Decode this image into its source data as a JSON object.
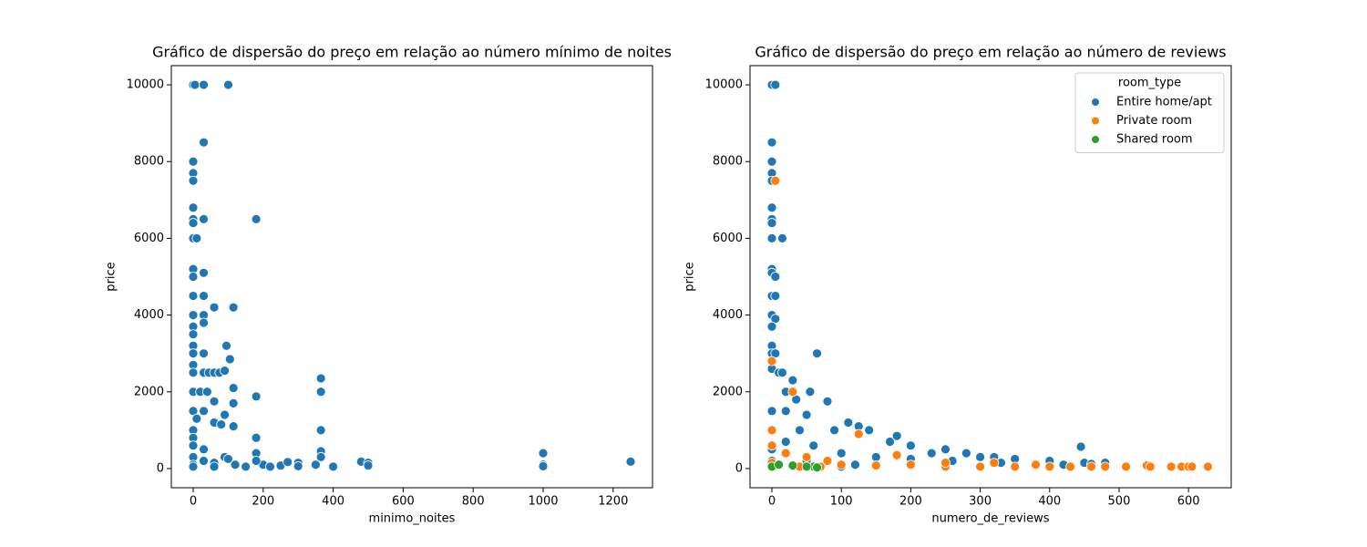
{
  "chart_data": [
    {
      "type": "scatter",
      "title": "Gráfico de dispersão do preço em relação ao número mínimo de noites",
      "xlabel": "minimo_noites",
      "ylabel": "price",
      "xlim": [
        -62.5,
        1312.5
      ],
      "ylim": [
        -500,
        10500
      ],
      "xticks": [
        0,
        200,
        400,
        600,
        800,
        1000,
        1200
      ],
      "yticks": [
        0,
        2000,
        4000,
        6000,
        8000,
        10000
      ],
      "color": "#1f77b4",
      "x": [
        0,
        5,
        30,
        100,
        30,
        0,
        0,
        0,
        0,
        0,
        0,
        30,
        0,
        10,
        180,
        0,
        0,
        30,
        0,
        30,
        60,
        115,
        0,
        30,
        30,
        0,
        0,
        0,
        95,
        0,
        30,
        105,
        0,
        0,
        30,
        45,
        60,
        75,
        90,
        365,
        115,
        0,
        20,
        40,
        365,
        180,
        60,
        115,
        0,
        30,
        90,
        10,
        60,
        80,
        115,
        365,
        0,
        0,
        180,
        0,
        30,
        365,
        180,
        1000,
        480,
        500,
        500,
        400,
        1000,
        1000,
        1250,
        0,
        0,
        30,
        60,
        90,
        120,
        150,
        200,
        250,
        270,
        300,
        300,
        350,
        365,
        0,
        60,
        100,
        180,
        220
      ],
      "values": [
        10000,
        10000,
        10000,
        10000,
        8500,
        8000,
        7700,
        7500,
        6800,
        6500,
        6400,
        6500,
        6000,
        6000,
        6500,
        5200,
        5000,
        5100,
        4500,
        4500,
        4200,
        4200,
        4000,
        4000,
        3800,
        3700,
        3500,
        3200,
        3200,
        3000,
        3000,
        2850,
        2700,
        2500,
        2500,
        2500,
        2500,
        2500,
        2550,
        2350,
        2100,
        2000,
        2000,
        2000,
        2000,
        1880,
        1750,
        1700,
        1500,
        1500,
        1400,
        1300,
        1200,
        1150,
        1100,
        1000,
        1000,
        800,
        800,
        600,
        500,
        450,
        400,
        400,
        180,
        150,
        80,
        50,
        100,
        60,
        180,
        300,
        100,
        200,
        150,
        300,
        100,
        50,
        100,
        80,
        170,
        150,
        60,
        100,
        300,
        50,
        50,
        250,
        200,
        50
      ]
    },
    {
      "type": "scatter",
      "title": "Gráfico de dispersão do preço em relação ao número de reviews",
      "xlabel": "numero_de_reviews",
      "ylabel": "price",
      "xlim": [
        -31.5,
        661.5
      ],
      "ylim": [
        -500,
        10500
      ],
      "xticks": [
        0,
        100,
        200,
        300,
        400,
        500,
        600
      ],
      "yticks": [
        0,
        2000,
        4000,
        6000,
        8000,
        10000
      ],
      "legend_title": "room_type",
      "legend": "upper right",
      "series": [
        {
          "name": "Entire home/apt",
          "color": "#1f77b4",
          "x": [
            0,
            5,
            0,
            0,
            0,
            0,
            0,
            0,
            0,
            15,
            0,
            0,
            0,
            5,
            0,
            5,
            0,
            5,
            0,
            0,
            0,
            5,
            65,
            0,
            10,
            15,
            30,
            20,
            55,
            80,
            35,
            0,
            20,
            50,
            110,
            125,
            0,
            40,
            90,
            140,
            170,
            180,
            200,
            230,
            250,
            280,
            300,
            320,
            350,
            400,
            445,
            450,
            480,
            0,
            20,
            60,
            100,
            150,
            200,
            260,
            330,
            380,
            420,
            460,
            10,
            50,
            120,
            100,
            0
          ],
          "values": [
            10000,
            10000,
            8500,
            8000,
            7700,
            7500,
            6800,
            6500,
            6400,
            6000,
            6000,
            5200,
            5100,
            5000,
            4500,
            4500,
            4000,
            3900,
            3700,
            3200,
            3000,
            3000,
            3000,
            2600,
            2500,
            2500,
            2300,
            2000,
            2000,
            1750,
            1800,
            1500,
            1500,
            1400,
            1200,
            1100,
            1000,
            1000,
            1000,
            1000,
            700,
            850,
            600,
            400,
            500,
            400,
            300,
            300,
            250,
            200,
            570,
            150,
            150,
            500,
            700,
            600,
            400,
            300,
            250,
            200,
            150,
            100,
            100,
            120,
            100,
            200,
            100,
            50,
            200
          ]
        },
        {
          "name": "Private room",
          "color": "#ff7f0e",
          "x": [
            5,
            0,
            0,
            30,
            125,
            0,
            20,
            50,
            80,
            100,
            150,
            180,
            200,
            250,
            300,
            320,
            350,
            400,
            430,
            460,
            480,
            510,
            540,
            545,
            575,
            590,
            600,
            605,
            628,
            0,
            40,
            0,
            70,
            250,
            380
          ],
          "values": [
            7500,
            2800,
            1000,
            2000,
            900,
            600,
            400,
            300,
            200,
            100,
            80,
            350,
            100,
            50,
            50,
            150,
            50,
            50,
            50,
            50,
            50,
            50,
            80,
            50,
            50,
            50,
            50,
            50,
            50,
            50,
            50,
            150,
            50,
            150,
            100
          ]
        },
        {
          "name": "Shared room",
          "color": "#2ca02c",
          "x": [
            0,
            10,
            30,
            60,
            65,
            50
          ],
          "values": [
            50,
            100,
            80,
            50,
            30,
            50
          ]
        }
      ]
    }
  ]
}
